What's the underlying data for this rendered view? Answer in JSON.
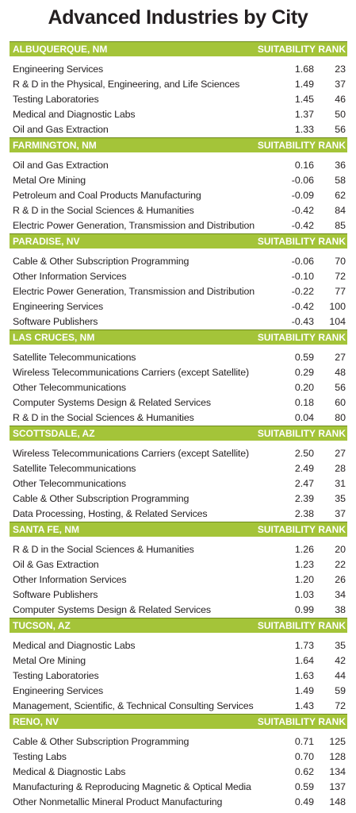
{
  "title": "Advanced Industries by City",
  "columns": {
    "suitability": "SUITABILITY",
    "rank": "RANK"
  },
  "colors": {
    "header": "#a4c439",
    "text": "#231f20"
  },
  "chart_data": {
    "type": "table",
    "title": "Advanced Industries by City",
    "columns": [
      "SUITABILITY",
      "RANK"
    ],
    "cities": [
      {
        "name": "ALBUQUERQUE, NM",
        "rows": [
          {
            "industry": "Engineering Services",
            "suitability": "1.68",
            "rank": "23"
          },
          {
            "industry": "R & D in the Physical, Engineering, and Life Sciences",
            "suitability": "1.49",
            "rank": "37"
          },
          {
            "industry": "Testing Laboratories",
            "suitability": "1.45",
            "rank": "46"
          },
          {
            "industry": "Medical and Diagnostic Labs",
            "suitability": "1.37",
            "rank": "50"
          },
          {
            "industry": "Oil and Gas Extraction",
            "suitability": "1.33",
            "rank": "56"
          }
        ]
      },
      {
        "name": "FARMINGTON, NM",
        "rows": [
          {
            "industry": "Oil and Gas Extraction",
            "suitability": "0.16",
            "rank": "36"
          },
          {
            "industry": "Metal Ore Mining",
            "suitability": "-0.06",
            "rank": "58"
          },
          {
            "industry": "Petroleum and Coal Products Manufacturing",
            "suitability": "-0.09",
            "rank": "62"
          },
          {
            "industry": "R & D in the Social Sciences & Humanities",
            "suitability": "-0.42",
            "rank": "84"
          },
          {
            "industry": "Electric Power Generation, Transmission and Distribution",
            "suitability": "-0.42",
            "rank": "85"
          }
        ]
      },
      {
        "name": "PARADISE, NV",
        "rows": [
          {
            "industry": "Cable & Other Subscription Programming",
            "suitability": "-0.06",
            "rank": "70"
          },
          {
            "industry": "Other Information Services",
            "suitability": "-0.10",
            "rank": "72"
          },
          {
            "industry": "Electric Power Generation, Transmission and Distribution",
            "suitability": "-0.22",
            "rank": "77"
          },
          {
            "industry": "Engineering Services",
            "suitability": "-0.42",
            "rank": "100"
          },
          {
            "industry": "Software Publishers",
            "suitability": "-0.43",
            "rank": "104"
          }
        ]
      },
      {
        "name": "LAS CRUCES, NM",
        "rows": [
          {
            "industry": "Satellite Telecommunications",
            "suitability": "0.59",
            "rank": "27"
          },
          {
            "industry": "Wireless Telecommunications Carriers (except Satellite)",
            "suitability": "0.29",
            "rank": "48"
          },
          {
            "industry": "Other Telecommunications",
            "suitability": "0.20",
            "rank": "56"
          },
          {
            "industry": "Computer Systems Design & Related Services",
            "suitability": "0.18",
            "rank": "60"
          },
          {
            "industry": "R & D in the Social Sciences & Humanities",
            "suitability": "0.04",
            "rank": "80"
          }
        ]
      },
      {
        "name": "SCOTTSDALE, AZ",
        "rows": [
          {
            "industry": "Wireless Telecommunications Carriers (except Satellite)",
            "suitability": "2.50",
            "rank": "27"
          },
          {
            "industry": "Satellite Telecommunications",
            "suitability": "2.49",
            "rank": "28"
          },
          {
            "industry": "Other Telecommunications",
            "suitability": "2.47",
            "rank": "31"
          },
          {
            "industry": "Cable & Other Subscription Programming",
            "suitability": "2.39",
            "rank": "35"
          },
          {
            "industry": "Data Processing, Hosting, & Related Services",
            "suitability": "2.38",
            "rank": "37"
          }
        ]
      },
      {
        "name": "SANTA FE, NM",
        "rows": [
          {
            "industry": "R & D in the Social Sciences & Humanities",
            "suitability": "1.26",
            "rank": "20"
          },
          {
            "industry": "Oil & Gas Extraction",
            "suitability": "1.23",
            "rank": "22"
          },
          {
            "industry": "Other Information Services",
            "suitability": "1.20",
            "rank": "26"
          },
          {
            "industry": "Software Publishers",
            "suitability": "1.03",
            "rank": "34"
          },
          {
            "industry": "Computer Systems Design & Related Services",
            "suitability": "0.99",
            "rank": "38"
          }
        ]
      },
      {
        "name": "TUCSON, AZ",
        "rows": [
          {
            "industry": "Medical and Diagnostic Labs",
            "suitability": "1.73",
            "rank": "35"
          },
          {
            "industry": "Metal Ore Mining",
            "suitability": "1.64",
            "rank": "42"
          },
          {
            "industry": "Testing Laboratories",
            "suitability": "1.63",
            "rank": "44"
          },
          {
            "industry": "Engineering Services",
            "suitability": "1.49",
            "rank": "59"
          },
          {
            "industry": "Management, Scientific, & Technical Consulting Services",
            "suitability": "1.43",
            "rank": "72"
          }
        ]
      },
      {
        "name": "RENO, NV",
        "rows": [
          {
            "industry": "Cable & Other Subscription Programming",
            "suitability": "0.71",
            "rank": "125"
          },
          {
            "industry": "Testing Labs",
            "suitability": "0.70",
            "rank": "128"
          },
          {
            "industry": "Medical & Diagnostic Labs",
            "suitability": "0.62",
            "rank": "134"
          },
          {
            "industry": "Manufacturing & Reproducing Magnetic & Optical Media",
            "suitability": "0.59",
            "rank": "137"
          },
          {
            "industry": "Other Nonmetallic Mineral Product Manufacturing",
            "suitability": "0.49",
            "rank": "148"
          }
        ]
      }
    ]
  }
}
